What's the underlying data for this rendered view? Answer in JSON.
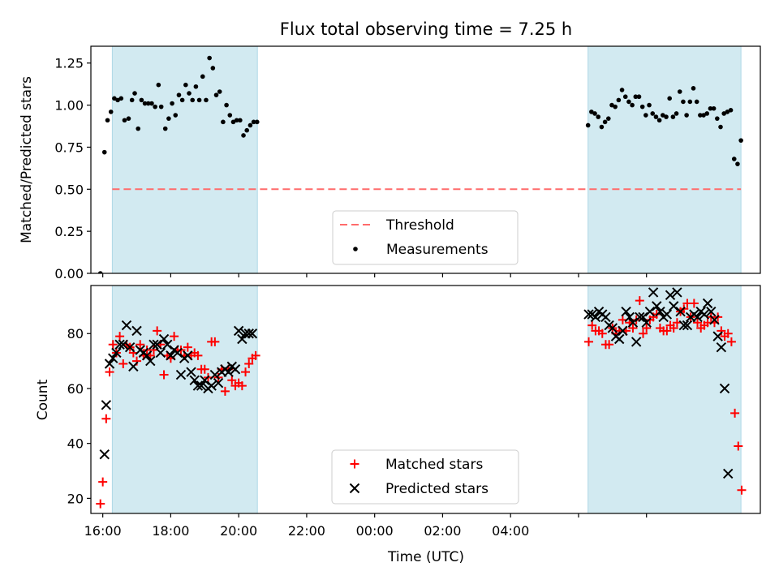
{
  "title": "Flux total observing time = 7.25 h",
  "colors": {
    "shade": "#add8e6",
    "threshold": "#ff6b6b",
    "measurement": "#000000",
    "matched": "#ff0000",
    "predicted": "#000000"
  },
  "chart_data": [
    {
      "type": "scatter",
      "ylabel": "Matched/Predicted stars",
      "ylim": [
        0,
        1.35
      ],
      "yticks": [
        0,
        0.25,
        0.5,
        0.75,
        1.0,
        1.25
      ],
      "ytick_labels": [
        "0.00",
        "0.25",
        "0.50",
        "0.75",
        "1.00",
        "1.25"
      ],
      "threshold": 0.5,
      "legend": {
        "placement": "lower-center",
        "entries": [
          {
            "label": "Threshold",
            "marker": "dashed-line"
          },
          {
            "label": "Measurements",
            "marker": "dot"
          }
        ]
      },
      "measurements": [
        [
          -0.07,
          0.0
        ],
        [
          0.05,
          0.72
        ],
        [
          0.14,
          0.91
        ],
        [
          0.24,
          0.96
        ],
        [
          0.34,
          1.04
        ],
        [
          0.44,
          1.03
        ],
        [
          0.54,
          1.04
        ],
        [
          0.64,
          0.91
        ],
        [
          0.76,
          0.92
        ],
        [
          0.86,
          1.03
        ],
        [
          0.94,
          1.07
        ],
        [
          1.04,
          0.86
        ],
        [
          1.14,
          1.03
        ],
        [
          1.24,
          1.01
        ],
        [
          1.34,
          1.01
        ],
        [
          1.44,
          1.01
        ],
        [
          1.54,
          0.99
        ],
        [
          1.64,
          1.12
        ],
        [
          1.72,
          0.99
        ],
        [
          1.84,
          0.86
        ],
        [
          1.94,
          0.92
        ],
        [
          2.04,
          1.01
        ],
        [
          2.14,
          0.94
        ],
        [
          2.24,
          1.06
        ],
        [
          2.34,
          1.03
        ],
        [
          2.44,
          1.12
        ],
        [
          2.54,
          1.07
        ],
        [
          2.64,
          1.03
        ],
        [
          2.74,
          1.11
        ],
        [
          2.84,
          1.03
        ],
        [
          2.94,
          1.17
        ],
        [
          3.04,
          1.03
        ],
        [
          3.14,
          1.28
        ],
        [
          3.24,
          1.22
        ],
        [
          3.34,
          1.06
        ],
        [
          3.44,
          1.08
        ],
        [
          3.54,
          0.9
        ],
        [
          3.64,
          1.0
        ],
        [
          3.74,
          0.94
        ],
        [
          3.84,
          0.9
        ],
        [
          3.94,
          0.91
        ],
        [
          4.04,
          0.91
        ],
        [
          4.14,
          0.82
        ],
        [
          4.24,
          0.85
        ],
        [
          4.34,
          0.88
        ],
        [
          4.44,
          0.9
        ],
        [
          4.54,
          0.9
        ],
        [
          14.28,
          0.88
        ],
        [
          14.38,
          0.96
        ],
        [
          14.48,
          0.95
        ],
        [
          14.58,
          0.93
        ],
        [
          14.68,
          0.87
        ],
        [
          14.78,
          0.9
        ],
        [
          14.88,
          0.92
        ],
        [
          14.98,
          1.0
        ],
        [
          15.08,
          0.99
        ],
        [
          15.18,
          1.03
        ],
        [
          15.28,
          1.09
        ],
        [
          15.38,
          1.05
        ],
        [
          15.48,
          1.02
        ],
        [
          15.58,
          1.0
        ],
        [
          15.68,
          1.05
        ],
        [
          15.78,
          1.05
        ],
        [
          15.88,
          0.99
        ],
        [
          15.98,
          0.94
        ],
        [
          16.08,
          1.0
        ],
        [
          16.18,
          0.95
        ],
        [
          16.28,
          0.93
        ],
        [
          16.38,
          0.91
        ],
        [
          16.48,
          0.94
        ],
        [
          16.58,
          0.93
        ],
        [
          16.68,
          1.04
        ],
        [
          16.78,
          0.93
        ],
        [
          16.88,
          0.95
        ],
        [
          16.98,
          1.08
        ],
        [
          17.08,
          1.02
        ],
        [
          17.18,
          0.94
        ],
        [
          17.28,
          1.02
        ],
        [
          17.38,
          1.1
        ],
        [
          17.48,
          1.02
        ],
        [
          17.58,
          0.94
        ],
        [
          17.68,
          0.94
        ],
        [
          17.78,
          0.95
        ],
        [
          17.88,
          0.98
        ],
        [
          17.98,
          0.98
        ],
        [
          18.08,
          0.92
        ],
        [
          18.18,
          0.87
        ],
        [
          18.28,
          0.95
        ],
        [
          18.38,
          0.96
        ],
        [
          18.48,
          0.97
        ],
        [
          18.58,
          0.68
        ],
        [
          18.68,
          0.65
        ],
        [
          18.78,
          0.79
        ]
      ]
    },
    {
      "type": "scatter",
      "xlabel": "Time (UTC)",
      "ylabel": "Count",
      "ylim": [
        14.5,
        97.5
      ],
      "yticks": [
        20,
        40,
        60,
        80
      ],
      "ytick_labels": [
        "20",
        "40",
        "60",
        "80"
      ],
      "legend": {
        "placement": "lower-center",
        "entries": [
          {
            "label": "Matched stars",
            "marker": "plus"
          },
          {
            "label": "Predicted stars",
            "marker": "x"
          }
        ]
      },
      "series": [
        {
          "name": "Matched stars",
          "marker": "plus",
          "points": [
            [
              -0.07,
              18
            ],
            [
              0.0,
              26
            ],
            [
              0.1,
              49
            ],
            [
              0.2,
              66
            ],
            [
              0.3,
              76
            ],
            [
              0.4,
              73
            ],
            [
              0.5,
              79
            ],
            [
              0.6,
              69
            ],
            [
              0.7,
              76
            ],
            [
              0.8,
              75
            ],
            [
              0.9,
              73
            ],
            [
              1.0,
              70
            ],
            [
              1.1,
              76
            ],
            [
              1.2,
              72
            ],
            [
              1.3,
              74
            ],
            [
              1.4,
              72
            ],
            [
              1.5,
              74
            ],
            [
              1.6,
              81
            ],
            [
              1.7,
              76
            ],
            [
              1.8,
              65
            ],
            [
              1.9,
              72
            ],
            [
              2.0,
              71
            ],
            [
              2.1,
              79
            ],
            [
              2.2,
              74
            ],
            [
              2.3,
              74
            ],
            [
              2.4,
              72
            ],
            [
              2.5,
              75
            ],
            [
              2.6,
              72
            ],
            [
              2.7,
              73
            ],
            [
              2.8,
              72
            ],
            [
              2.9,
              67
            ],
            [
              3.0,
              67
            ],
            [
              3.1,
              64
            ],
            [
              3.2,
              77
            ],
            [
              3.3,
              77
            ],
            [
              3.4,
              64
            ],
            [
              3.5,
              67
            ],
            [
              3.6,
              59
            ],
            [
              3.7,
              67
            ],
            [
              3.8,
              63
            ],
            [
              3.9,
              61
            ],
            [
              4.0,
              62
            ],
            [
              4.1,
              61
            ],
            [
              4.2,
              66
            ],
            [
              4.3,
              69
            ],
            [
              4.4,
              71
            ],
            [
              4.5,
              72
            ],
            [
              14.3,
              77
            ],
            [
              14.4,
              83
            ],
            [
              14.5,
              81
            ],
            [
              14.6,
              81
            ],
            [
              14.7,
              80
            ],
            [
              14.8,
              76
            ],
            [
              14.9,
              76
            ],
            [
              15.0,
              82
            ],
            [
              15.1,
              80
            ],
            [
              15.2,
              81
            ],
            [
              15.3,
              85
            ],
            [
              15.4,
              81
            ],
            [
              15.5,
              84
            ],
            [
              15.6,
              82
            ],
            [
              15.7,
              85
            ],
            [
              15.8,
              92
            ],
            [
              15.9,
              80
            ],
            [
              16.0,
              82
            ],
            [
              16.1,
              85
            ],
            [
              16.2,
              86
            ],
            [
              16.3,
              87
            ],
            [
              16.4,
              82
            ],
            [
              16.5,
              81
            ],
            [
              16.6,
              81
            ],
            [
              16.7,
              83
            ],
            [
              16.8,
              82
            ],
            [
              16.9,
              84
            ],
            [
              17.0,
              88
            ],
            [
              17.1,
              89
            ],
            [
              17.2,
              91
            ],
            [
              17.3,
              86
            ],
            [
              17.4,
              91
            ],
            [
              17.5,
              84
            ],
            [
              17.6,
              82
            ],
            [
              17.7,
              83
            ],
            [
              17.8,
              84
            ],
            [
              17.9,
              86
            ],
            [
              18.0,
              84
            ],
            [
              18.1,
              86
            ],
            [
              18.2,
              81
            ],
            [
              18.3,
              79
            ],
            [
              18.4,
              80
            ],
            [
              18.5,
              77
            ],
            [
              18.6,
              51
            ],
            [
              18.7,
              39
            ],
            [
              18.8,
              23
            ]
          ]
        },
        {
          "name": "Predicted stars",
          "marker": "x",
          "points": [
            [
              0.05,
              36
            ],
            [
              0.1,
              54
            ],
            [
              0.2,
              69
            ],
            [
              0.3,
              71
            ],
            [
              0.4,
              73
            ],
            [
              0.5,
              76
            ],
            [
              0.6,
              76
            ],
            [
              0.7,
              83
            ],
            [
              0.8,
              75
            ],
            [
              0.9,
              68
            ],
            [
              1.0,
              81
            ],
            [
              1.1,
              74
            ],
            [
              1.2,
              73
            ],
            [
              1.3,
              72
            ],
            [
              1.4,
              70
            ],
            [
              1.5,
              76
            ],
            [
              1.6,
              76
            ],
            [
              1.7,
              73
            ],
            [
              1.8,
              78
            ],
            [
              1.9,
              76
            ],
            [
              2.0,
              72
            ],
            [
              2.1,
              74
            ],
            [
              2.2,
              73
            ],
            [
              2.3,
              65
            ],
            [
              2.4,
              71
            ],
            [
              2.5,
              72
            ],
            [
              2.6,
              66
            ],
            [
              2.7,
              63
            ],
            [
              2.8,
              61
            ],
            [
              2.9,
              61
            ],
            [
              3.0,
              63
            ],
            [
              3.1,
              60
            ],
            [
              3.2,
              61
            ],
            [
              3.3,
              65
            ],
            [
              3.4,
              62
            ],
            [
              3.5,
              66
            ],
            [
              3.6,
              67
            ],
            [
              3.7,
              66
            ],
            [
              3.8,
              68
            ],
            [
              3.9,
              67
            ],
            [
              4.0,
              81
            ],
            [
              4.1,
              78
            ],
            [
              4.2,
              80
            ],
            [
              4.3,
              80
            ],
            [
              4.4,
              80
            ],
            [
              14.3,
              87
            ],
            [
              14.4,
              87
            ],
            [
              14.5,
              86
            ],
            [
              14.6,
              88
            ],
            [
              14.7,
              87
            ],
            [
              14.8,
              86
            ],
            [
              14.9,
              83
            ],
            [
              15.0,
              82
            ],
            [
              15.1,
              79
            ],
            [
              15.2,
              78
            ],
            [
              15.3,
              81
            ],
            [
              15.4,
              88
            ],
            [
              15.5,
              86
            ],
            [
              15.6,
              84
            ],
            [
              15.7,
              77
            ],
            [
              15.8,
              86
            ],
            [
              15.9,
              86
            ],
            [
              16.0,
              84
            ],
            [
              16.1,
              88
            ],
            [
              16.2,
              95
            ],
            [
              16.3,
              90
            ],
            [
              16.4,
              88
            ],
            [
              16.5,
              86
            ],
            [
              16.6,
              87
            ],
            [
              16.7,
              94
            ],
            [
              16.8,
              90
            ],
            [
              16.9,
              95
            ],
            [
              17.0,
              88
            ],
            [
              17.1,
              83
            ],
            [
              17.2,
              83
            ],
            [
              17.3,
              86
            ],
            [
              17.4,
              87
            ],
            [
              17.5,
              86
            ],
            [
              17.6,
              88
            ],
            [
              17.7,
              87
            ],
            [
              17.8,
              91
            ],
            [
              17.9,
              88
            ],
            [
              18.0,
              85
            ],
            [
              18.1,
              79
            ],
            [
              18.2,
              75
            ],
            [
              18.3,
              60
            ],
            [
              18.4,
              29
            ]
          ]
        }
      ]
    }
  ],
  "shaded_spans": [
    [
      0.28,
      4.55
    ],
    [
      14.28,
      18.78
    ]
  ],
  "xaxis": {
    "xlim": [
      -0.35,
      19.35
    ],
    "ticks": [
      0,
      2,
      4,
      6,
      8,
      10,
      12,
      14,
      16
    ],
    "tick_labels": [
      "16:00",
      "18:00",
      "20:00",
      "22:00",
      "00:00",
      "02:00",
      "04:00"
    ],
    "tick_label_positions": [
      0,
      2,
      4,
      6,
      8,
      10,
      12
    ]
  }
}
